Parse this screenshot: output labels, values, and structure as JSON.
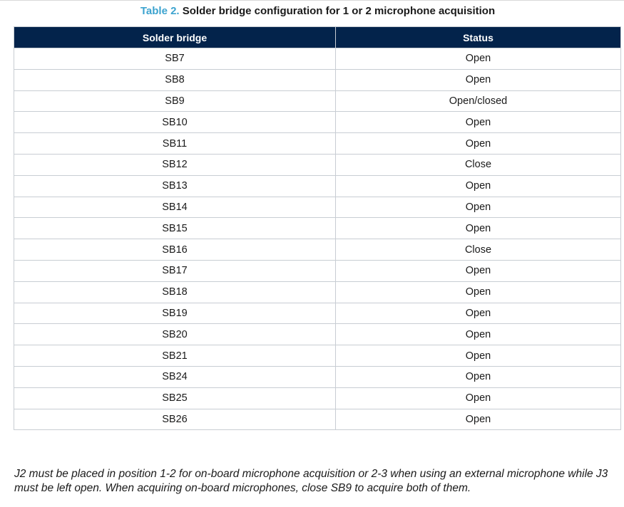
{
  "caption": {
    "number": "Table 2.",
    "title": "Solder bridge configuration for 1 or 2 microphone acquisition"
  },
  "table": {
    "headers": [
      "Solder bridge",
      "Status"
    ],
    "rows": [
      [
        "SB7",
        "Open"
      ],
      [
        "SB8",
        "Open"
      ],
      [
        "SB9",
        "Open/closed"
      ],
      [
        "SB10",
        "Open"
      ],
      [
        "SB11",
        "Open"
      ],
      [
        "SB12",
        "Close"
      ],
      [
        "SB13",
        "Open"
      ],
      [
        "SB14",
        "Open"
      ],
      [
        "SB15",
        "Open"
      ],
      [
        "SB16",
        "Close"
      ],
      [
        "SB17",
        "Open"
      ],
      [
        "SB18",
        "Open"
      ],
      [
        "SB19",
        "Open"
      ],
      [
        "SB20",
        "Open"
      ],
      [
        "SB21",
        "Open"
      ],
      [
        "SB24",
        "Open"
      ],
      [
        "SB25",
        "Open"
      ],
      [
        "SB26",
        "Open"
      ]
    ]
  },
  "note": {
    "text": "J2 must be placed in position 1-2 for on-board microphone acquisition or 2-3 when using an external microphone while J3 must be left open. When acquiring on-board microphones, close SB9 to acquire both of them."
  },
  "colors": {
    "header_bg": "#03234b",
    "caption_number": "#3ca3cf",
    "grid": "#c8cdd3"
  }
}
